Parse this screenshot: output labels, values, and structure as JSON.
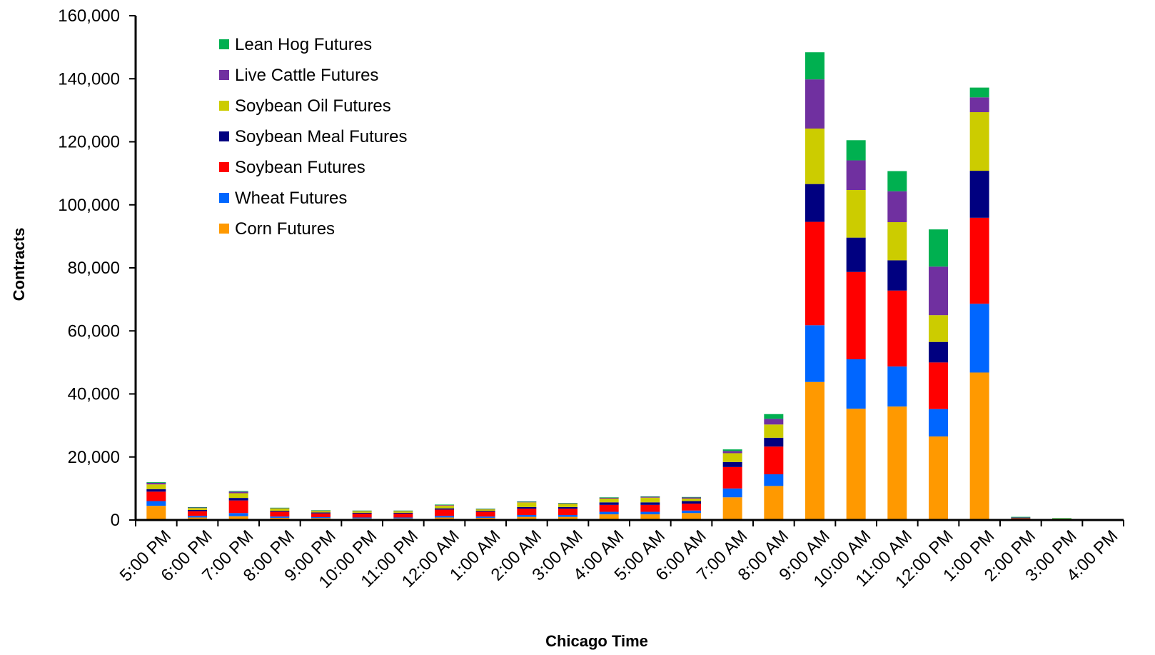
{
  "chart_data": {
    "type": "bar",
    "stacked": true,
    "xlabel": "Chicago Time",
    "ylabel": "Contracts",
    "ylim": [
      0,
      160000
    ],
    "yticks": [
      0,
      20000,
      40000,
      60000,
      80000,
      100000,
      120000,
      140000,
      160000
    ],
    "ytick_labels": [
      "0",
      "20,000",
      "40,000",
      "60,000",
      "80,000",
      "100,000",
      "120,000",
      "140,000",
      "160,000"
    ],
    "grid": false,
    "legend_position": "top-left",
    "categories": [
      "5:00 PM",
      "6:00 PM",
      "7:00 PM",
      "8:00 PM",
      "9:00 PM",
      "10:00 PM",
      "11:00 PM",
      "12:00 AM",
      "1:00 AM",
      "2:00 AM",
      "3:00 AM",
      "4:00 AM",
      "5:00 AM",
      "6:00 AM",
      "7:00 AM",
      "8:00 AM",
      "9:00 AM",
      "10:00 AM",
      "11:00 AM",
      "12:00 PM",
      "1:00 PM",
      "2:00 PM",
      "3:00 PM",
      "4:00 PM"
    ],
    "series": [
      {
        "name": "Corn Futures",
        "color": "#FF9900",
        "values": [
          4500,
          800,
          1200,
          700,
          600,
          500,
          500,
          800,
          700,
          1000,
          1000,
          1800,
          1800,
          2200,
          7200,
          10800,
          43800,
          35300,
          36000,
          26500,
          46800,
          200,
          100,
          0
        ]
      },
      {
        "name": "Wheat Futures",
        "color": "#0066FF",
        "values": [
          1500,
          500,
          1000,
          400,
          300,
          300,
          300,
          500,
          400,
          600,
          600,
          800,
          800,
          800,
          2800,
          3700,
          18000,
          15700,
          12700,
          8700,
          21800,
          100,
          100,
          0
        ]
      },
      {
        "name": "Soybean Futures",
        "color": "#FF0000",
        "values": [
          3000,
          1500,
          4000,
          1500,
          1200,
          1200,
          1200,
          2000,
          1500,
          2000,
          2000,
          2200,
          2200,
          2200,
          6800,
          8800,
          32800,
          27700,
          24100,
          14800,
          27300,
          200,
          100,
          0
        ]
      },
      {
        "name": "Soybean Meal Futures",
        "color": "#000080",
        "values": [
          800,
          400,
          800,
          300,
          300,
          300,
          300,
          400,
          300,
          500,
          500,
          800,
          800,
          800,
          1600,
          2800,
          12000,
          10900,
          9600,
          6500,
          14900,
          100,
          100,
          0
        ]
      },
      {
        "name": "Soybean Oil Futures",
        "color": "#CCCC00",
        "values": [
          1500,
          600,
          1500,
          800,
          500,
          500,
          500,
          900,
          500,
          1500,
          1000,
          1200,
          1500,
          800,
          2800,
          4200,
          17600,
          15100,
          12100,
          8500,
          18600,
          100,
          100,
          0
        ]
      },
      {
        "name": "Live Cattle Futures",
        "color": "#7030A0",
        "values": [
          500,
          200,
          500,
          100,
          100,
          100,
          100,
          200,
          100,
          200,
          200,
          300,
          300,
          400,
          700,
          1800,
          15600,
          9400,
          9800,
          15400,
          4700,
          100,
          0,
          0
        ]
      },
      {
        "name": "Lean Hog Futures",
        "color": "#00B050",
        "values": [
          200,
          100,
          200,
          100,
          100,
          100,
          100,
          100,
          100,
          100,
          100,
          100,
          100,
          100,
          500,
          1500,
          8600,
          6400,
          6400,
          11800,
          3100,
          200,
          100,
          0
        ]
      }
    ],
    "legend_order": [
      "Lean Hog Futures",
      "Live Cattle Futures",
      "Soybean Oil Futures",
      "Soybean Meal Futures",
      "Soybean Futures",
      "Wheat Futures",
      "Corn Futures"
    ]
  }
}
